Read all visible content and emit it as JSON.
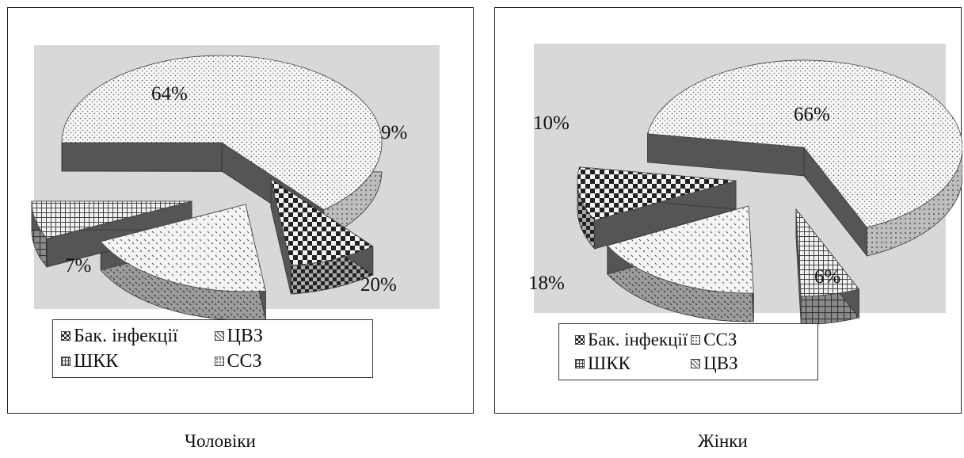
{
  "chart_data": [
    {
      "type": "pie",
      "title": "Чоловіки",
      "slices": [
        {
          "label": "ССЗ",
          "value": 64,
          "value_label": "64%",
          "pattern": "dots",
          "exploded": false
        },
        {
          "label": "Бак. інфекції",
          "value": 9,
          "value_label": "9%",
          "pattern": "checker",
          "exploded": true
        },
        {
          "label": "ЦВЗ",
          "value": 20,
          "value_label": "20%",
          "pattern": "diamond",
          "exploded": true
        },
        {
          "label": "ШКК",
          "value": 7,
          "value_label": "7%",
          "pattern": "grid",
          "exploded": true
        }
      ],
      "legend": [
        {
          "label": "Бак. інфекції",
          "pattern": "checker"
        },
        {
          "label": "ЦВЗ",
          "pattern": "diamond"
        },
        {
          "label": "ШКК",
          "pattern": "grid"
        },
        {
          "label": "ССЗ",
          "pattern": "dots"
        }
      ],
      "legend_placement": "bottom",
      "style": "3d-exploded"
    },
    {
      "type": "pie",
      "title": "Жінки",
      "slices": [
        {
          "label": "ССЗ",
          "value": 66,
          "value_label": "66%",
          "pattern": "dots",
          "exploded": false
        },
        {
          "label": "ШКК",
          "value": 6,
          "value_label": "6%",
          "pattern": "grid",
          "exploded": true
        },
        {
          "label": "ЦВЗ",
          "value": 18,
          "value_label": "18%",
          "pattern": "diamond",
          "exploded": true
        },
        {
          "label": "Бак. інфекції",
          "value": 10,
          "value_label": "10%",
          "pattern": "checker",
          "exploded": true
        }
      ],
      "legend": [
        {
          "label": "Бак. інфекції",
          "pattern": "checker"
        },
        {
          "label": "ССЗ",
          "pattern": "dots"
        },
        {
          "label": "ШКК",
          "pattern": "grid"
        },
        {
          "label": "ЦВЗ",
          "pattern": "diamond"
        }
      ],
      "legend_placement": "bottom",
      "style": "3d-exploded"
    }
  ],
  "colors": {
    "plot_background": "#d8d8d8",
    "wall": "#555555",
    "ink": "#222222"
  }
}
